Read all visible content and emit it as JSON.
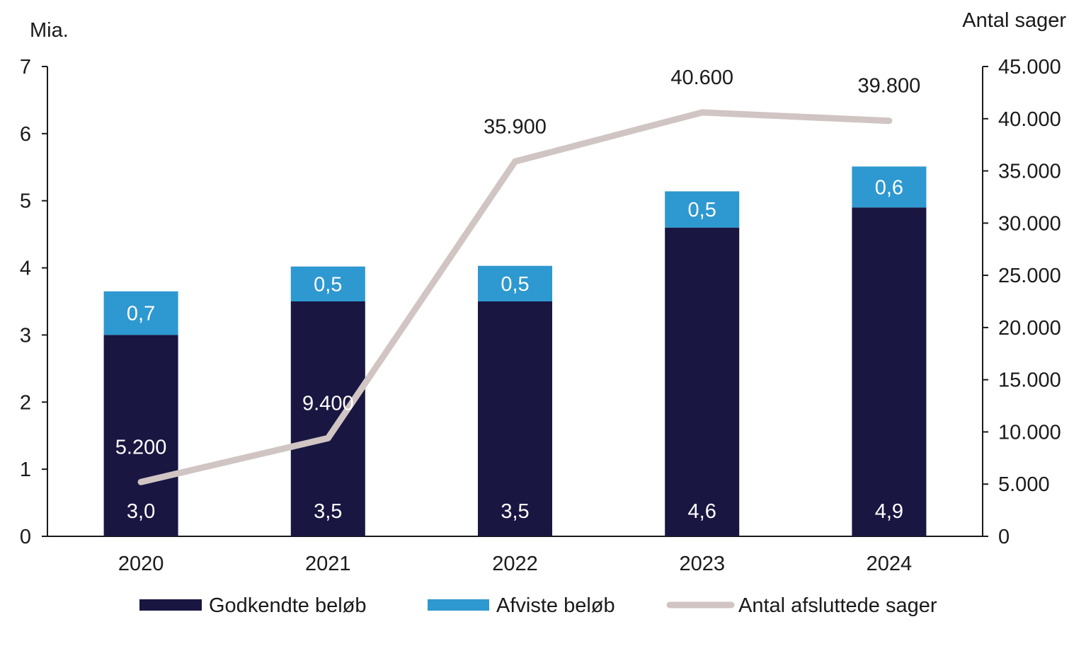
{
  "chart_data": {
    "type": "bar",
    "stacked": true,
    "categories": [
      "2020",
      "2021",
      "2022",
      "2023",
      "2024"
    ],
    "series": [
      {
        "name": "Godkendte beløb",
        "type": "bar",
        "axis": "left",
        "color": "#191641",
        "values": [
          3.0,
          3.5,
          3.5,
          4.6,
          4.9
        ],
        "labels": [
          "3,0",
          "3,5",
          "3,5",
          "4,6",
          "4,9"
        ]
      },
      {
        "name": "Afviste beløb",
        "type": "bar",
        "axis": "left",
        "color": "#2e98d0",
        "values": [
          0.65,
          0.52,
          0.53,
          0.54,
          0.61
        ],
        "labels": [
          "0,7",
          "0,5",
          "0,5",
          "0,5",
          "0,6"
        ]
      },
      {
        "name": "Antal afsluttede sager",
        "type": "line",
        "axis": "right",
        "color": "#d0c5c3",
        "values": [
          5200,
          9400,
          35900,
          40600,
          39800
        ],
        "labels": [
          "5.200",
          "9.400",
          "35.900",
          "40.600",
          "39.800"
        ]
      }
    ],
    "y_left": {
      "unit_label": "Mia.",
      "ylim": [
        0,
        7
      ],
      "ticks": [
        "0",
        "1",
        "2",
        "3",
        "4",
        "5",
        "6",
        "7"
      ]
    },
    "y_right": {
      "unit_label": "Antal sager",
      "ylim": [
        0,
        45000
      ],
      "ticks": [
        "0",
        "5.000",
        "10.000",
        "15.000",
        "20.000",
        "25.000",
        "30.000",
        "35.000",
        "40.000",
        "45.000"
      ]
    },
    "grid": false,
    "legend": "bottom"
  }
}
